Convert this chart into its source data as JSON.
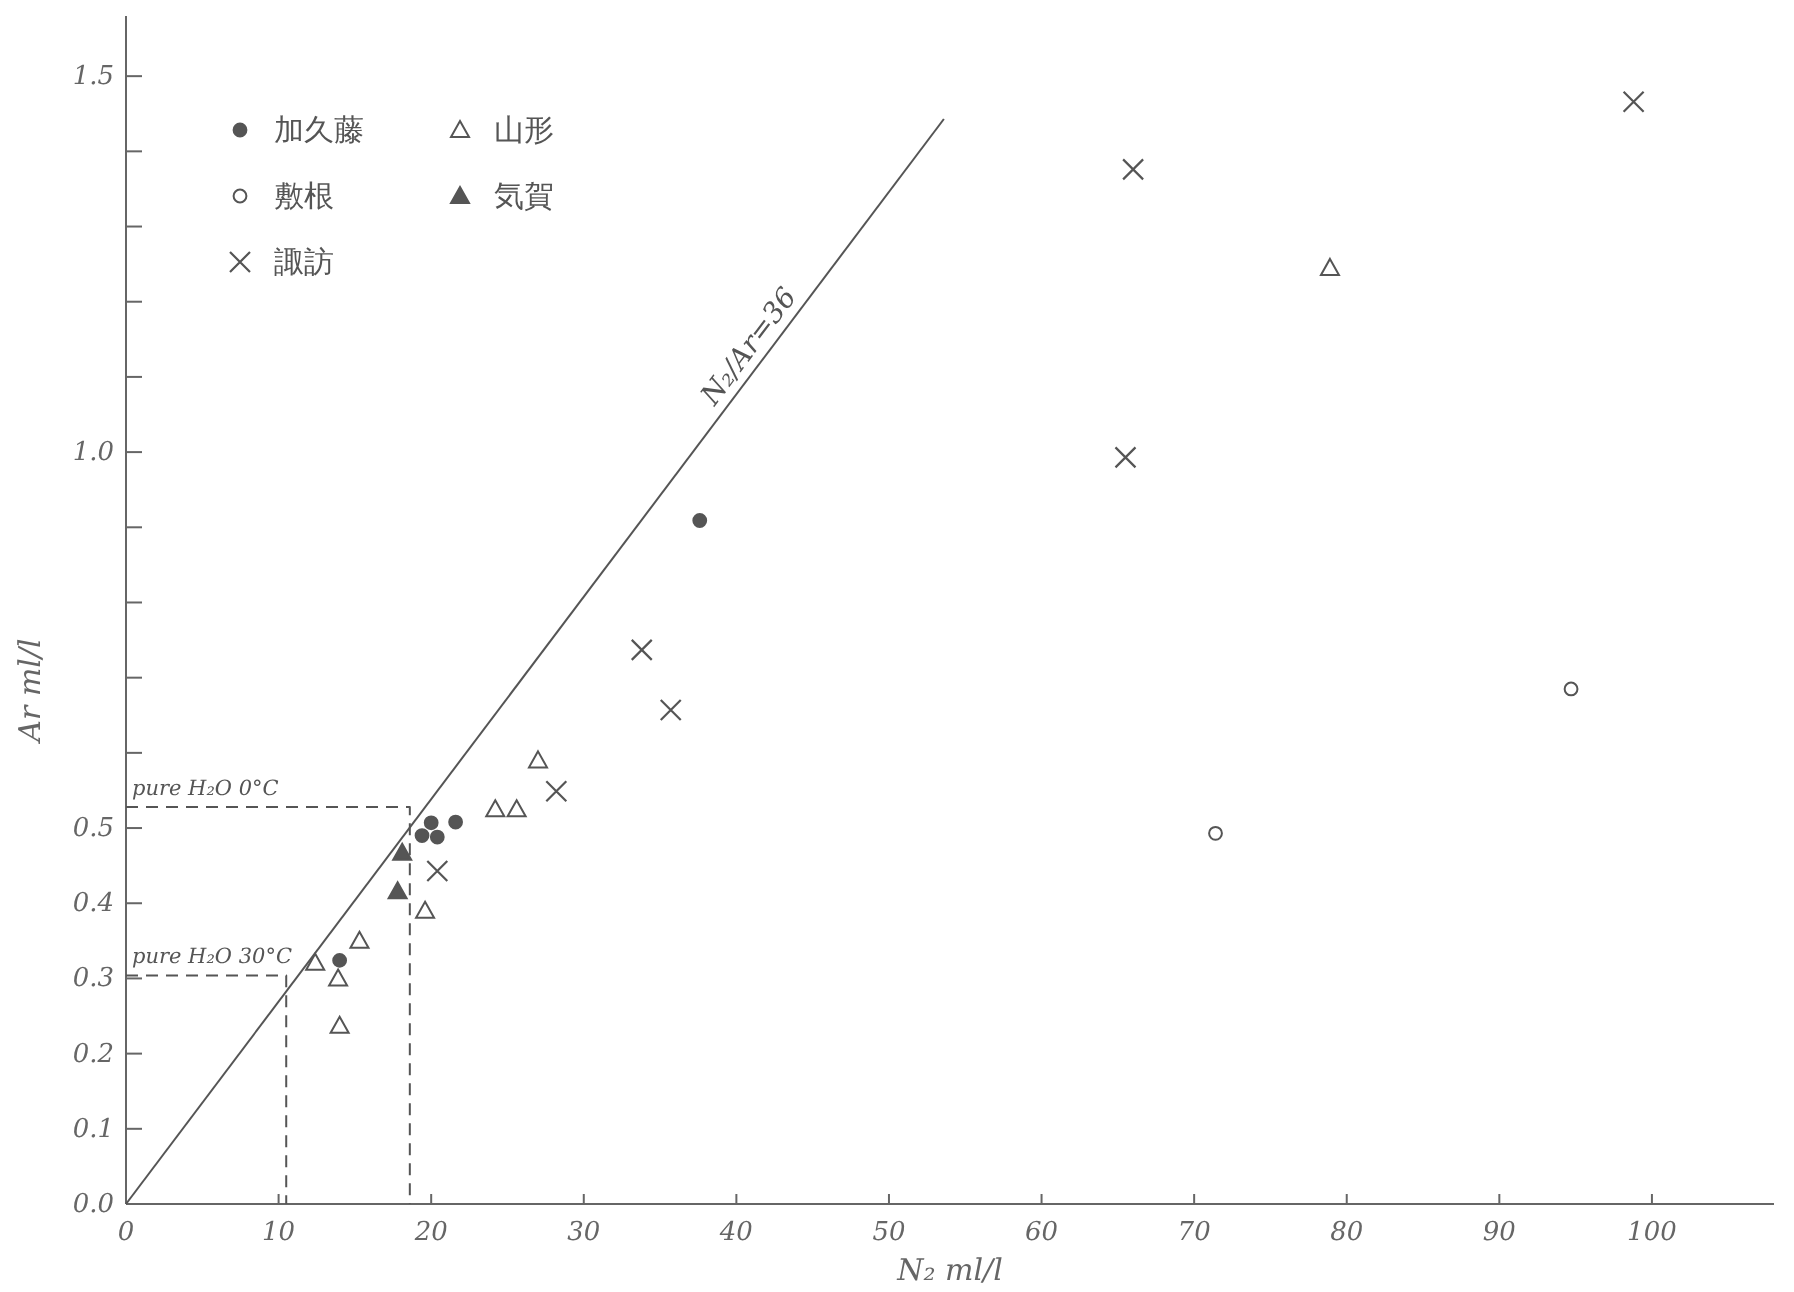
{
  "chart_data": {
    "type": "scatter",
    "xlabel": "N₂ ml/l",
    "ylabel": "Ar ml/l",
    "xlim": [
      0,
      108
    ],
    "ylim": [
      0,
      1.58
    ],
    "xticks": [
      0,
      10,
      20,
      30,
      40,
      50,
      60,
      70,
      80,
      90,
      100
    ],
    "yticks": [
      {
        "value": 0,
        "label": "0.0"
      },
      0.1,
      0.2,
      0.3,
      0.4,
      0.5,
      {
        "value": 0.6,
        "label": null
      },
      {
        "value": 0.7,
        "label": null
      },
      {
        "value": 0.8,
        "label": null
      },
      {
        "value": 0.9,
        "label": null
      },
      {
        "value": 1,
        "label": "1.0"
      },
      {
        "value": 1.1,
        "label": null
      },
      {
        "value": 1.2,
        "label": null
      },
      {
        "value": 1.3,
        "label": null
      },
      {
        "value": 1.4,
        "label": null
      },
      1.5
    ],
    "grid": false,
    "legend": "top left",
    "series": [
      {
        "name": "加久藤",
        "color": "#555555",
        "marker": "circle",
        "x": [
          14.0,
          19.4,
          20.0,
          20.4,
          21.6,
          37.6
        ],
        "values": [
          0.324,
          0.49,
          0.507,
          0.488,
          0.508,
          0.909
        ]
      },
      {
        "name": "山形",
        "color": "#ffffff",
        "marker": "triangle",
        "x": [
          12.4,
          13.9,
          14.0,
          15.3,
          19.6,
          24.2,
          25.6,
          27.0,
          78.9
        ],
        "values": [
          0.321,
          0.3,
          0.237,
          0.35,
          0.39,
          0.525,
          0.525,
          0.59,
          1.245
        ]
      },
      {
        "name": "敷根",
        "color": "#ffffff",
        "marker": "circle",
        "x": [
          71.4,
          94.7
        ],
        "values": [
          0.493,
          0.685
        ]
      },
      {
        "name": "気賀",
        "color": "#555555",
        "marker": "triangle",
        "x": [
          18.1,
          17.8
        ],
        "values": [
          0.467,
          0.416
        ]
      },
      {
        "name": "諏訪",
        "color": "#555555",
        "marker": "cross",
        "x": [
          20.4,
          28.2,
          35.7,
          33.8,
          66.0,
          65.5,
          98.8
        ],
        "values": [
          0.443,
          0.549,
          0.657,
          0.737,
          1.376,
          0.993,
          1.466
        ]
      },
      {
        "name": "N₂/Ar=36",
        "type": "line",
        "color": "#555555",
        "marker": "none",
        "line_style": "solid",
        "x": [
          0,
          53.6
        ],
        "values": [
          0,
          1.443
        ]
      },
      {
        "name": "pure H₂O 0°C",
        "type": "line",
        "color": "#555555",
        "marker": "none",
        "line_style": "dashed",
        "x": [
          0,
          18.6,
          18.6
        ],
        "values": [
          0.528,
          0.528,
          0
        ]
      },
      {
        "name": "pure H₂O 30°C",
        "type": "line",
        "color": "#555555",
        "marker": "none",
        "line_style": "dashed",
        "x": [
          0,
          10.5,
          10.5
        ],
        "values": [
          0.304,
          0.304,
          0
        ]
      }
    ]
  }
}
